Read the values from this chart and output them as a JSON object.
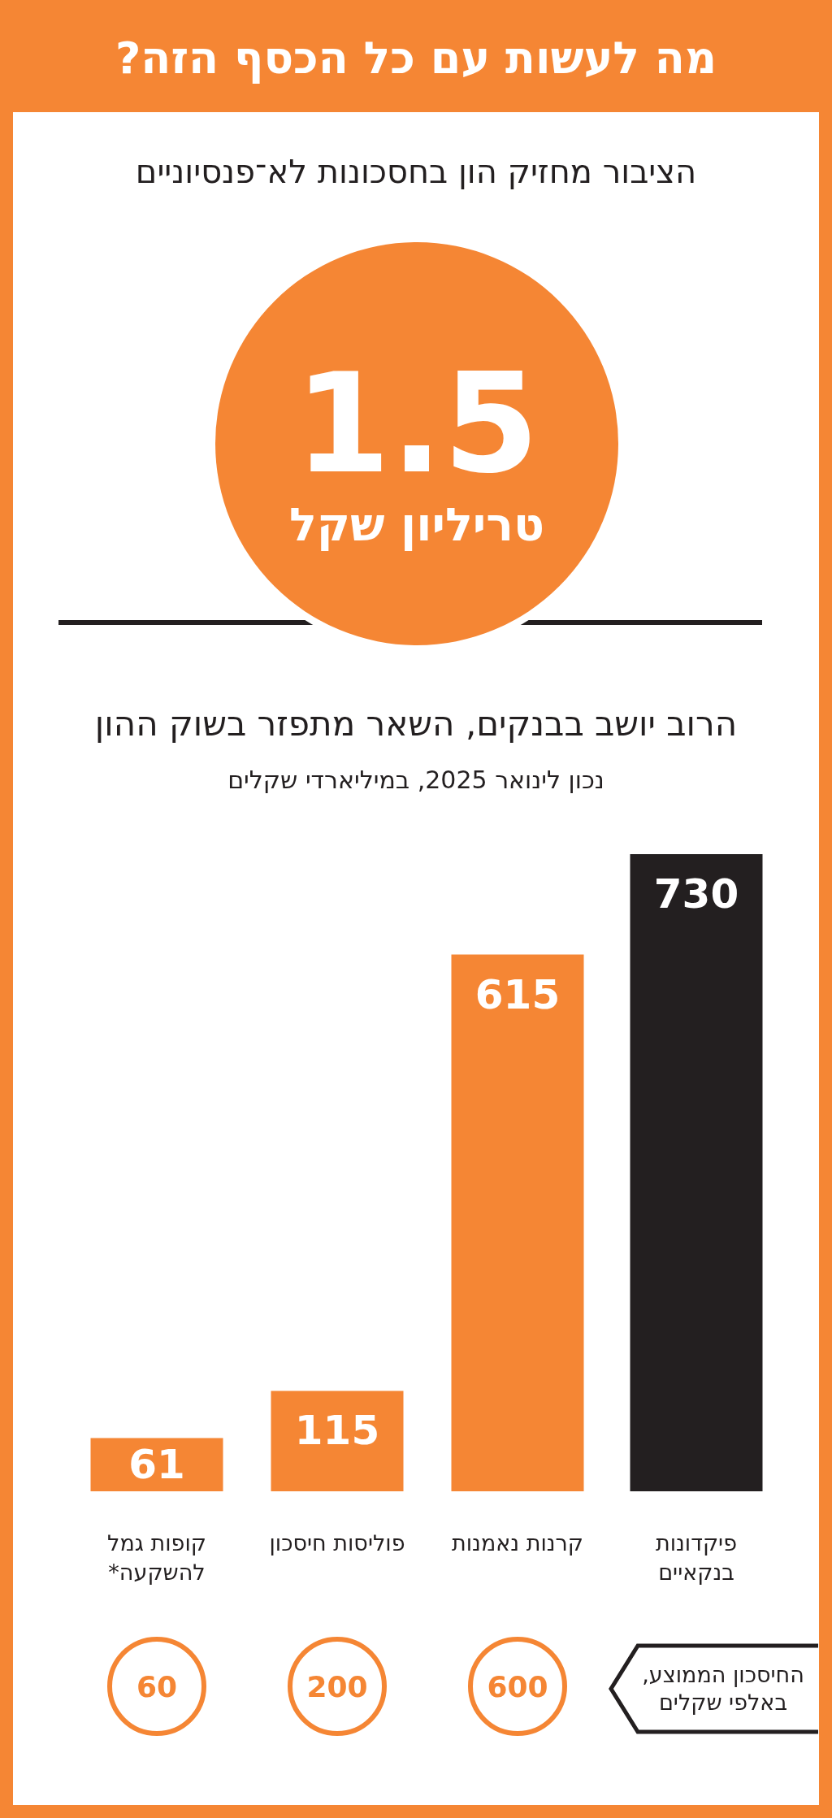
{
  "chart_data": [
    {
      "type": "other",
      "title": "מה לעשות עם כל הכסף הזה?",
      "subtitle": "הציבור מחזיק הון בחסכונות לא־פנסיוניים",
      "annotations": [
        "1.5",
        "טריליון שקל"
      ],
      "color": "#f58634"
    },
    {
      "type": "bar",
      "title": "הרוב יושב בבנקים, השאר מתפזר בשוק ההון",
      "subtitle": "נכון לינואר 2025, במיליארדי שקלים",
      "categories": [
        "קופות גמל להשקעה*",
        "פוליסות חיסכון",
        "קרנות נאמנות",
        "פיקדונות בנקאיים"
      ],
      "values": [
        61,
        115,
        615,
        730
      ],
      "colors": [
        "#f58634",
        "#f58634",
        "#f58634",
        "#231f20"
      ],
      "data_labels": true
    },
    {
      "type": "other",
      "title": "החיסכון הממוצע, באלפי שקלים",
      "categories": [
        null,
        null,
        null,
        null
      ],
      "values": [
        60,
        200,
        600,
        null
      ],
      "color": "#f58634",
      "data_labels": true
    }
  ]
}
